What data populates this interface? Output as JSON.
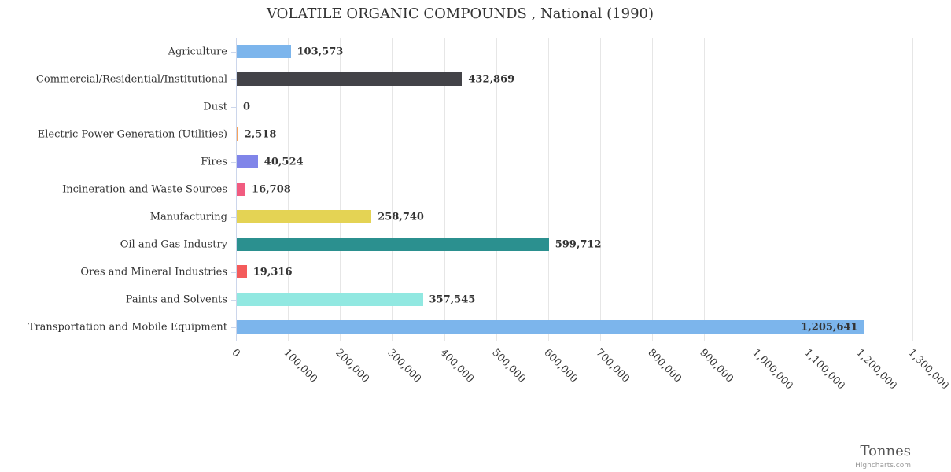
{
  "chart_data": {
    "type": "bar",
    "title": "VOLATILE ORGANIC COMPOUNDS , National (1990)",
    "categories": [
      "Agriculture",
      "Commercial/Residential/Institutional",
      "Dust",
      "Electric Power Generation (Utilities)",
      "Fires",
      "Incineration and Waste Sources",
      "Manufacturing",
      "Oil and Gas Industry",
      "Ores and Mineral Industries",
      "Paints and Solvents",
      "Transportation and Mobile Equipment"
    ],
    "values": [
      103573,
      432869,
      0,
      2518,
      40524,
      16708,
      258740,
      599712,
      19316,
      357545,
      1205641
    ],
    "value_labels": [
      "103,573",
      "432,869",
      "0",
      "2,518",
      "40,524",
      "16,708",
      "258,740",
      "599,712",
      "19,316",
      "357,545",
      "1,205,641"
    ],
    "bar_colors": [
      "#7cb5ec",
      "#434348",
      "#90ed7d",
      "#f7a35c",
      "#8085e9",
      "#f15c80",
      "#e4d354",
      "#2b908f",
      "#f45b5b",
      "#91e8e1",
      "#7cb5ec"
    ],
    "xlabel": "Tonnes",
    "ylabel": "",
    "xlim": [
      0,
      1300000
    ],
    "tick_interval": 100000,
    "x_ticks": [
      "0",
      "100,000",
      "200,000",
      "300,000",
      "400,000",
      "500,000",
      "600,000",
      "700,000",
      "800,000",
      "900,000",
      "1,000,000",
      "1,100,000",
      "1,200,000",
      "1,300,000"
    ],
    "grid": true,
    "legend": "none",
    "orientation": "horizontal",
    "credit": "Highcharts.com"
  }
}
